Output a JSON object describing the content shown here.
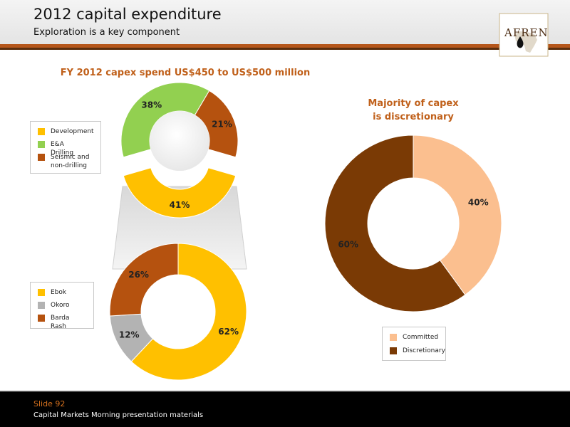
{
  "header": {
    "title": "2012 capital expenditure",
    "subtitle": "Exploration is a key component",
    "logo_text": "AFREN"
  },
  "footer": {
    "slide_label": "Slide 92",
    "text": "Capital Markets Morning presentation materials"
  },
  "chart_data": [
    {
      "type": "pie",
      "title": "FY 2012 capex spend US$450 to US$500 million",
      "categories": [
        "Development",
        "E&A Drilling",
        "Seismic and non-drilling"
      ],
      "values": [
        41,
        38,
        21
      ],
      "labels": [
        "41%",
        "38%",
        "21%"
      ],
      "colors": [
        "#ffc000",
        "#92d050",
        "#b5520f"
      ],
      "legend_placement": "left"
    },
    {
      "type": "pie",
      "title": "",
      "categories": [
        "Ebok",
        "Okoro",
        "Barda Rash"
      ],
      "values": [
        62,
        12,
        26
      ],
      "labels": [
        "62%",
        "12%",
        "26%"
      ],
      "colors": [
        "#ffc000",
        "#b3b3b3",
        "#b5520f"
      ],
      "legend_placement": "left"
    },
    {
      "type": "pie",
      "title": "Majority of capex is discretionary",
      "title_lines": [
        "Majority of capex",
        "is discretionary"
      ],
      "categories": [
        "Committed",
        "Discretionary"
      ],
      "values": [
        40,
        60
      ],
      "labels": [
        "40%",
        "60%"
      ],
      "colors": [
        "#fbbf8f",
        "#7a3a05"
      ],
      "legend_placement": "bottom"
    }
  ]
}
